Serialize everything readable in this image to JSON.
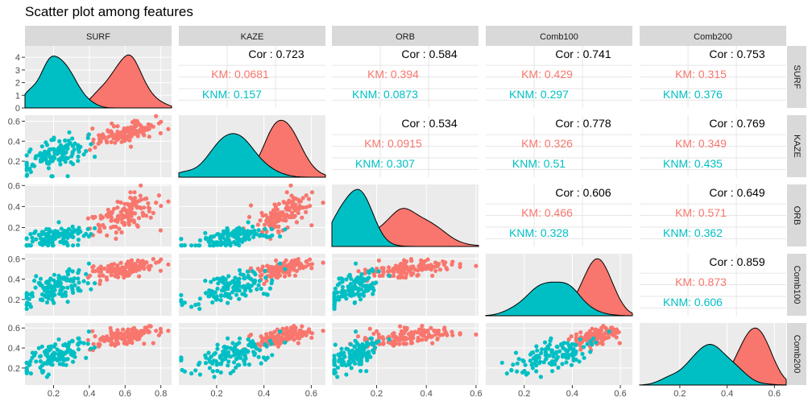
{
  "chart_data": {
    "type": "scatter",
    "title": "Scatter plot among features",
    "variables": [
      "SURF",
      "KAZE",
      "ORB",
      "Comb100",
      "Comb200"
    ],
    "groups": [
      {
        "name": "KM",
        "color": "#F8766D"
      },
      {
        "name": "KNM",
        "color": "#00BFC4"
      }
    ],
    "cor_prefix": "Cor : ",
    "km_prefix": "KM: ",
    "knm_prefix": "KNM: ",
    "correlations": [
      {
        "row": "SURF",
        "col": "KAZE",
        "cor": "0.723",
        "km": "0.0681",
        "knm": "0.157"
      },
      {
        "row": "SURF",
        "col": "ORB",
        "cor": "0.584",
        "km": "0.394",
        "knm": "0.0873"
      },
      {
        "row": "SURF",
        "col": "Comb100",
        "cor": "0.741",
        "km": "0.429",
        "knm": "0.297"
      },
      {
        "row": "SURF",
        "col": "Comb200",
        "cor": "0.753",
        "km": "0.315",
        "knm": "0.376"
      },
      {
        "row": "KAZE",
        "col": "ORB",
        "cor": "0.534",
        "km": "0.0915",
        "knm": "0.307"
      },
      {
        "row": "KAZE",
        "col": "Comb100",
        "cor": "0.778",
        "km": "0.326",
        "knm": "0.51"
      },
      {
        "row": "KAZE",
        "col": "Comb200",
        "cor": "0.769",
        "km": "0.349",
        "knm": "0.435"
      },
      {
        "row": "ORB",
        "col": "Comb100",
        "cor": "0.606",
        "km": "0.466",
        "knm": "0.328"
      },
      {
        "row": "ORB",
        "col": "Comb200",
        "cor": "0.649",
        "km": "0.571",
        "knm": "0.362"
      },
      {
        "row": "Comb100",
        "col": "Comb200",
        "cor": "0.859",
        "km": "0.873",
        "knm": "0.606"
      }
    ],
    "axes": {
      "SURF": {
        "range": [
          0.04,
          0.86
        ],
        "ticks": [
          0.2,
          0.4,
          0.6,
          0.8
        ],
        "tick_labels": [
          "0.2",
          "0.4",
          "0.6",
          "0.8"
        ]
      },
      "KAZE": {
        "range": [
          0.04,
          0.66
        ],
        "ticks": [
          0.2,
          0.4,
          0.6
        ],
        "tick_labels": [
          "0.2",
          "0.4",
          "0.6"
        ]
      },
      "ORB": {
        "range": [
          0.02,
          0.61
        ],
        "ticks": [
          0.2,
          0.4,
          0.6
        ],
        "tick_labels": [
          "0.2",
          "0.4",
          "0.6"
        ]
      },
      "Comb100": {
        "range": [
          0.04,
          0.65
        ],
        "ticks": [
          0.2,
          0.4,
          0.6
        ],
        "tick_labels": [
          "0.2",
          "0.4",
          "0.6"
        ]
      },
      "Comb200": {
        "range": [
          0.03,
          0.65
        ],
        "ticks": [
          0.2,
          0.4,
          0.6
        ],
        "tick_labels": [
          "0.2",
          "0.4",
          "0.6"
        ]
      }
    },
    "density_axis": {
      "range": [
        0,
        4.9
      ],
      "ticks": [
        0,
        1,
        2,
        3,
        4
      ],
      "tick_labels": [
        "0",
        "1",
        "2",
        "3",
        "4"
      ]
    },
    "group_distributions": {
      "KM": {
        "SURF": {
          "mean": 0.6,
          "sd": 0.09
        },
        "KAZE": {
          "mean": 0.48,
          "sd": 0.06
        },
        "ORB": {
          "mean": 0.33,
          "sd": 0.1
        },
        "Comb100": {
          "mean": 0.5,
          "sd": 0.05
        },
        "Comb200": {
          "mean": 0.51,
          "sd": 0.05
        }
      },
      "KNM": {
        "SURF": {
          "mean": 0.22,
          "sd": 0.1
        },
        "KAZE": {
          "mean": 0.26,
          "sd": 0.09
        },
        "ORB": {
          "mean": 0.1,
          "sd": 0.06
        },
        "Comb100": {
          "mean": 0.32,
          "sd": 0.09
        },
        "Comb200": {
          "mean": 0.32,
          "sd": 0.09
        }
      }
    },
    "points_per_group": 130,
    "grid": true,
    "legend": "none"
  }
}
